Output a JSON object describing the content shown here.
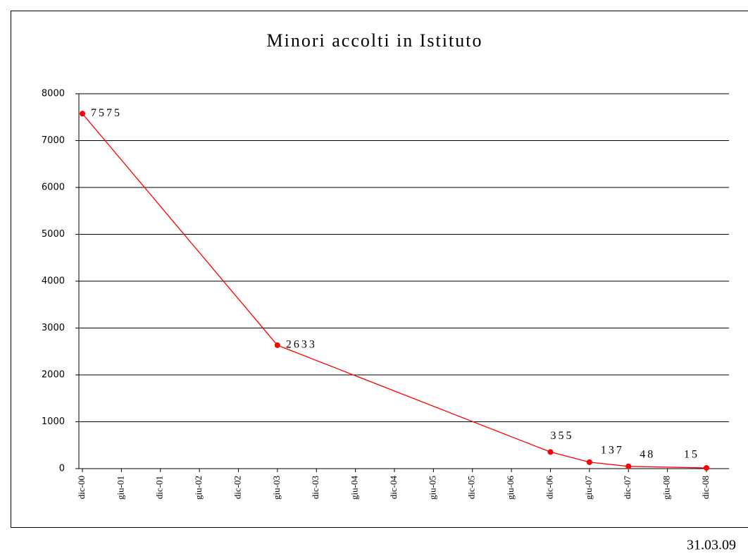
{
  "chart_data": {
    "type": "line",
    "title": "Minori accolti in Istituto",
    "xticks": [
      "dic-00",
      "giu-01",
      "dic-01",
      "giu-02",
      "dic-02",
      "giu-03",
      "dic-03",
      "giu-04",
      "dic-04",
      "giu-05",
      "dic-05",
      "giu-06",
      "dic-06",
      "giu-07",
      "dic-07",
      "giu-08",
      "dic-08"
    ],
    "x": [
      "dic-00",
      "giu-03",
      "dic-06",
      "giu-07",
      "dic-07",
      "dic-08"
    ],
    "series": [
      {
        "name": "Minori accolti",
        "color": "#ff0000",
        "values": [
          7575,
          2633,
          355,
          137,
          48,
          15
        ]
      }
    ],
    "ylim": [
      0,
      8000
    ],
    "yticks": [
      0,
      1000,
      2000,
      3000,
      4000,
      5000,
      6000,
      7000,
      8000
    ],
    "grid": true,
    "note": "31.03.09"
  }
}
